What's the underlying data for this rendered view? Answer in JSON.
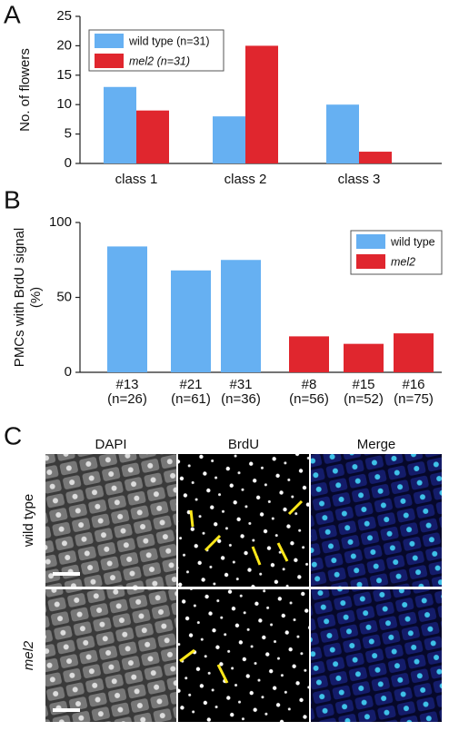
{
  "panels": {
    "a": "A",
    "b": "B",
    "c": "C"
  },
  "chart_data": [
    {
      "type": "bar",
      "ylabel": "No. of flowers",
      "categories": [
        "class 1",
        "class 2",
        "class 3"
      ],
      "series": [
        {
          "name": "wild type (n=31)",
          "color": "#66b0f2",
          "values": [
            13,
            8,
            10
          ]
        },
        {
          "name": "mel2 (n=31)",
          "color": "#e0262e",
          "values": [
            9,
            20,
            2
          ]
        }
      ],
      "ylim": [
        0,
        25
      ],
      "yticks": [
        0,
        5,
        10,
        15,
        20,
        25
      ],
      "legend": "upper left"
    },
    {
      "type": "bar",
      "ylabel": "PMCs with BrdU signal (%)",
      "categories": [
        "#13",
        "#21",
        "#31",
        "#8",
        "#15",
        "#16"
      ],
      "category_notes": [
        "(n=26)",
        "(n=61)",
        "(n=36)",
        "(n=56)",
        "(n=52)",
        "(n=75)"
      ],
      "series": [
        {
          "name": "wild type",
          "color": "#66b0f2",
          "values": [
            84,
            68,
            75,
            null,
            null,
            null
          ]
        },
        {
          "name": "mel2",
          "color": "#e0262e",
          "values": [
            null,
            null,
            null,
            24,
            19,
            26
          ]
        }
      ],
      "ylim": [
        0,
        100
      ],
      "yticks": [
        0,
        50,
        100
      ],
      "legend": "upper right"
    }
  ],
  "images": {
    "columns": [
      "DAPI",
      "BrdU",
      "Merge"
    ],
    "rows": [
      "wild type",
      "mel2"
    ]
  }
}
